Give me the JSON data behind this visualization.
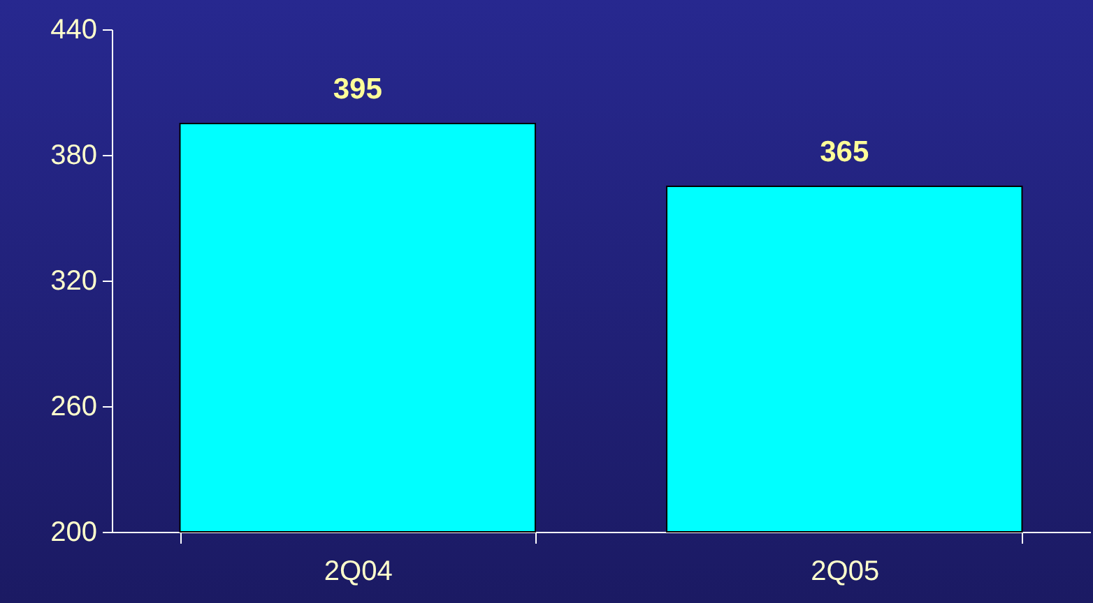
{
  "chart_data": {
    "type": "bar",
    "categories": [
      "2Q04",
      "2Q05"
    ],
    "values": [
      395,
      365
    ],
    "color": "#00ffff",
    "ylim": [
      200,
      440
    ],
    "yticks": [
      200,
      260,
      320,
      380,
      440
    ],
    "grid": false,
    "data_labels": true
  }
}
